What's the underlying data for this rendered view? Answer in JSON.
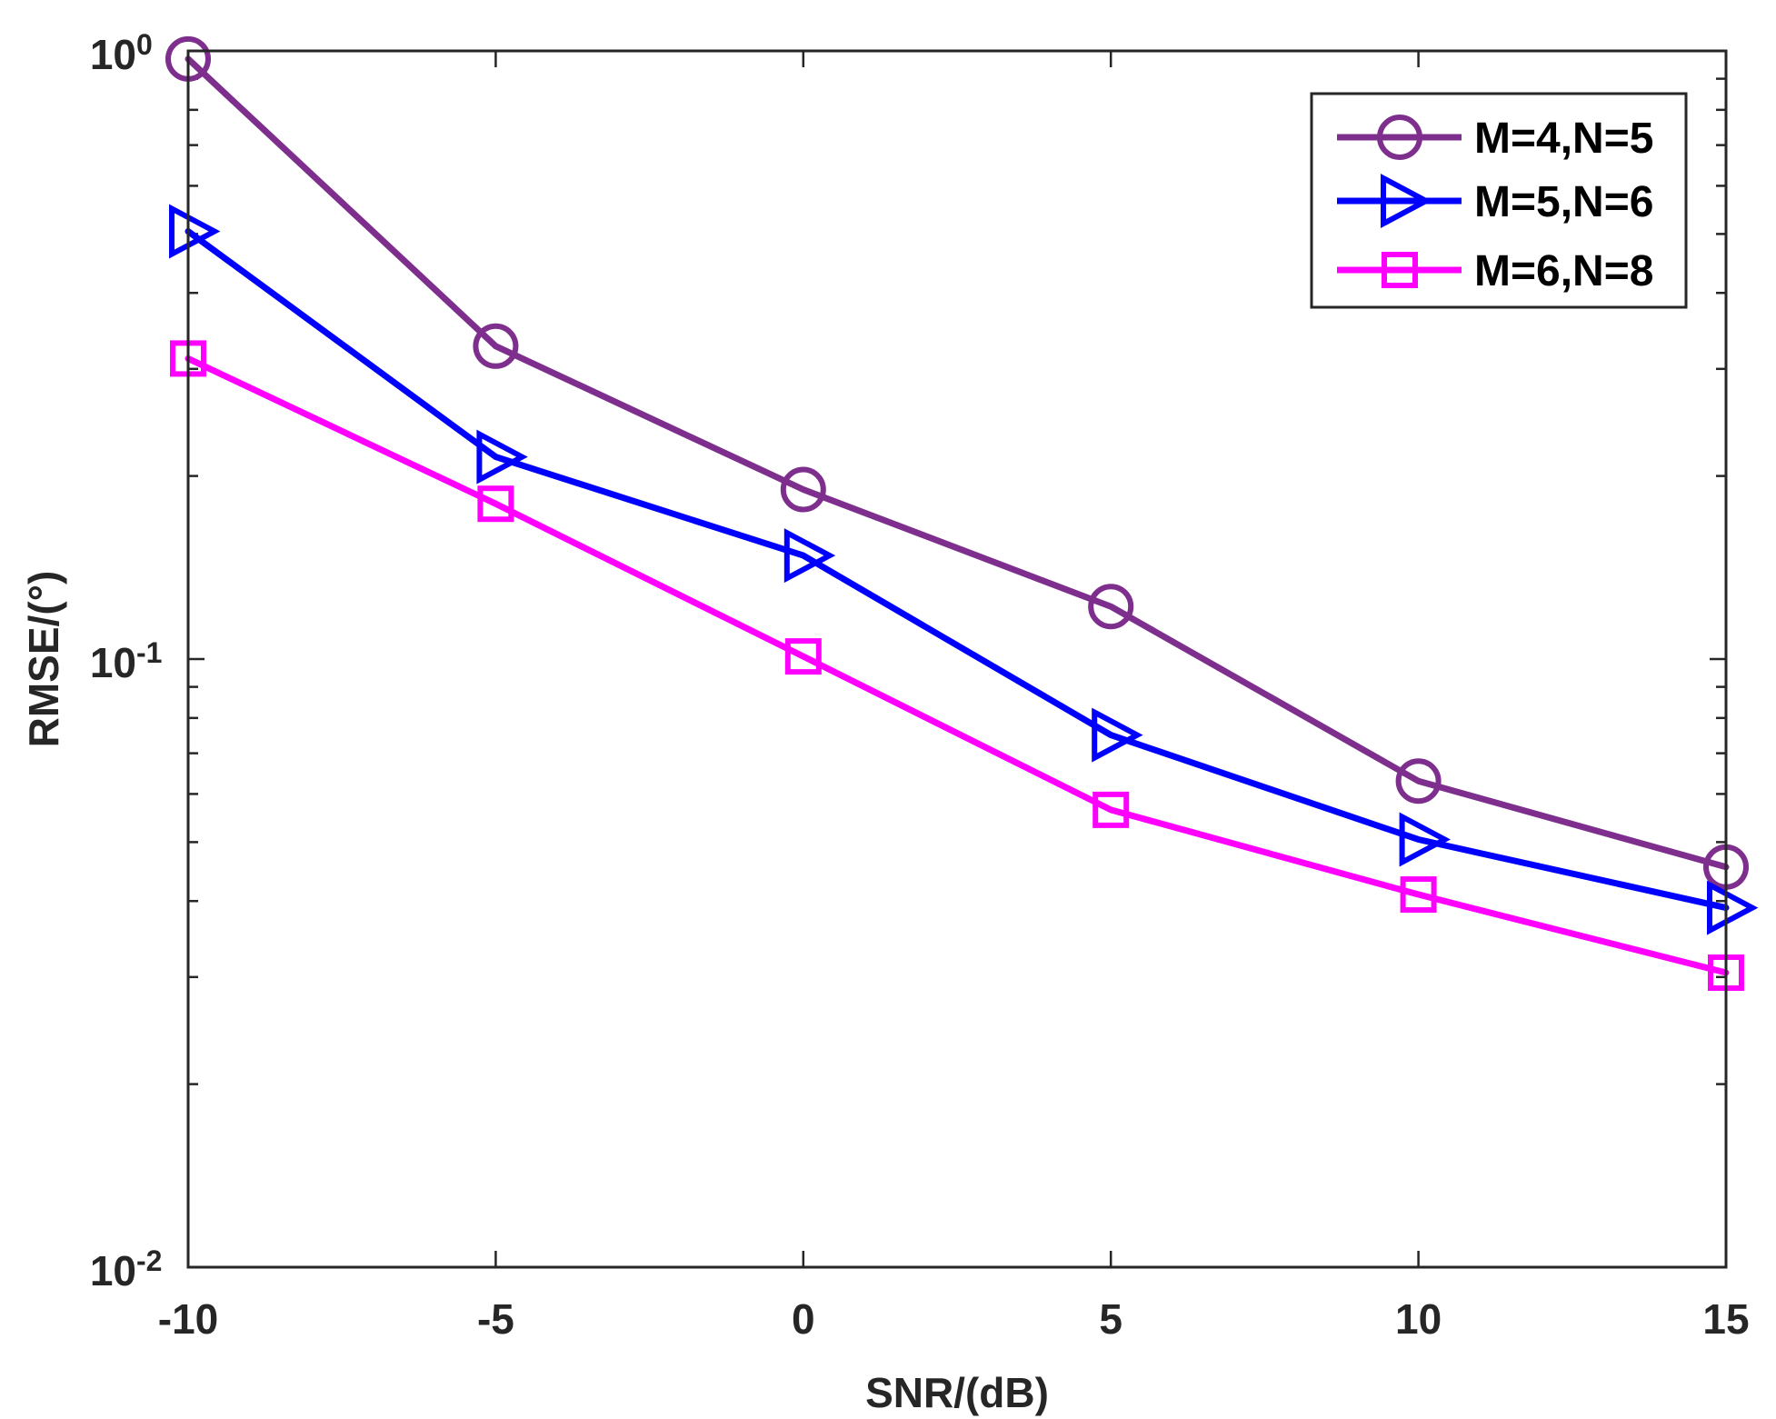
{
  "chart_data": {
    "type": "line",
    "title": "",
    "xlabel": "SNR/(dB)",
    "ylabel": "RMSE/(°)",
    "x": [
      -10,
      -5,
      0,
      5,
      10,
      15
    ],
    "xlim": [
      -10,
      15
    ],
    "ylim": [
      0.01,
      1
    ],
    "yscale": "log",
    "grid": false,
    "legend_position": "top-right",
    "x_ticks": [
      -10,
      -5,
      0,
      5,
      10,
      15
    ],
    "x_tick_labels": [
      "-10",
      "-5",
      "0",
      "5",
      "10",
      "15"
    ],
    "y_ticks": [
      {
        "value": 0.01,
        "base": "10",
        "exp": "-2"
      },
      {
        "value": 0.1,
        "base": "10",
        "exp": "-1"
      },
      {
        "value": 1,
        "base": "10",
        "exp": "0"
      }
    ],
    "series": [
      {
        "name": "M=4,N=5",
        "color": "#7E2F8E",
        "marker": "circle",
        "values": [
          0.97,
          0.327,
          0.19,
          0.122,
          0.063,
          0.0455
        ]
      },
      {
        "name": "M=5,N=6",
        "color": "#0000FF",
        "marker": "triangle-right",
        "values": [
          0.505,
          0.215,
          0.148,
          0.075,
          0.0505,
          0.039
        ]
      },
      {
        "name": "M=6,N=8",
        "color": "#FF00FF",
        "marker": "square",
        "values": [
          0.312,
          0.18,
          0.101,
          0.0565,
          0.041,
          0.0305
        ]
      }
    ]
  }
}
